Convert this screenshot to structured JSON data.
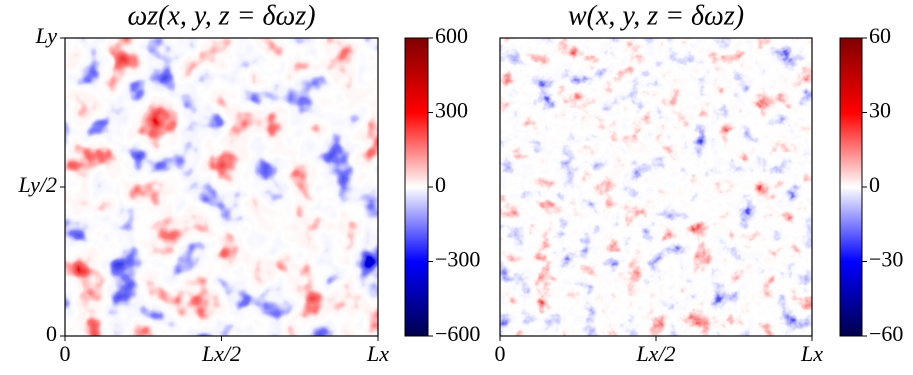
{
  "chart_data": [
    {
      "type": "heatmap",
      "title": "ωz(x, y, z = δωz)",
      "xlim": [
        0,
        1
      ],
      "xticks": [
        0,
        {
          "value": 0.5,
          "label": "Lx/2"
        },
        {
          "value": 1,
          "label": "Lx"
        }
      ],
      "ylim": [
        0,
        1
      ],
      "yticks": [
        0,
        {
          "value": 0.5,
          "label": "Ly/2"
        },
        {
          "value": 1,
          "label": "Ly"
        }
      ],
      "colorbar": {
        "lim": [
          -600,
          600
        ],
        "ticks": [
          {
            "value": -600,
            "label": "−600"
          },
          {
            "value": -300,
            "label": "−300"
          },
          0,
          300,
          600
        ]
      },
      "colormap": [
        "#00004c",
        "#0000ff",
        "#ffffff",
        "#ff0000",
        "#800000"
      ]
    },
    {
      "type": "heatmap",
      "title": "w(x, y, z = δωz)",
      "xlim": [
        0,
        1
      ],
      "xticks": [
        0,
        {
          "value": 0.5,
          "label": "Lx/2"
        },
        {
          "value": 1,
          "label": "Lx"
        }
      ],
      "colorbar": {
        "lim": [
          -60,
          60
        ],
        "ticks": [
          {
            "value": -60,
            "label": "−60"
          },
          {
            "value": -30,
            "label": "−30"
          },
          0,
          30,
          60
        ]
      },
      "colormap": [
        "#00004c",
        "#0000ff",
        "#ffffff",
        "#ff0000",
        "#800000"
      ]
    }
  ]
}
